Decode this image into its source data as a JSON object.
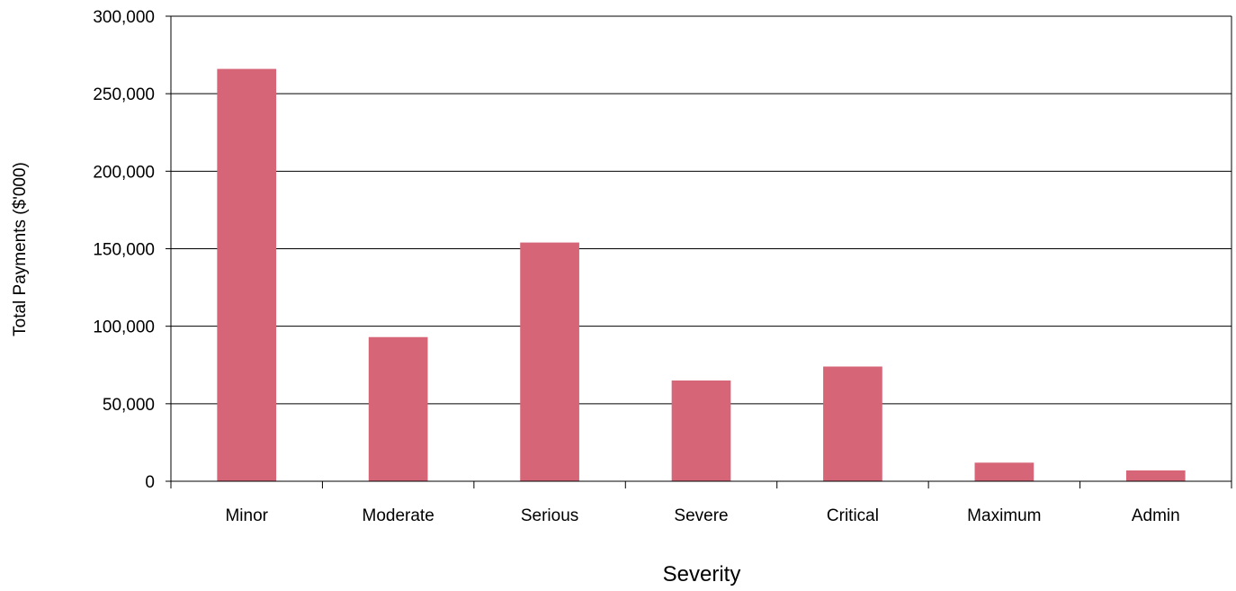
{
  "chart_data": {
    "type": "bar",
    "categories": [
      "Minor",
      "Moderate",
      "Serious",
      "Severe",
      "Critical",
      "Maximum",
      "Admin"
    ],
    "values": [
      266000,
      93000,
      154000,
      65000,
      74000,
      12000,
      7000
    ],
    "title": "",
    "xlabel": "Severity",
    "ylabel": "Total Payments ($'000)",
    "ylim": [
      0,
      300000
    ],
    "yticks": [
      0,
      50000,
      100000,
      150000,
      200000,
      250000,
      300000
    ],
    "ytick_labels": [
      "0",
      "50,000",
      "100,000",
      "150,000",
      "200,000",
      "250,000",
      "300,000"
    ],
    "grid": true,
    "legend": "none",
    "bar_color": "#D66677"
  }
}
